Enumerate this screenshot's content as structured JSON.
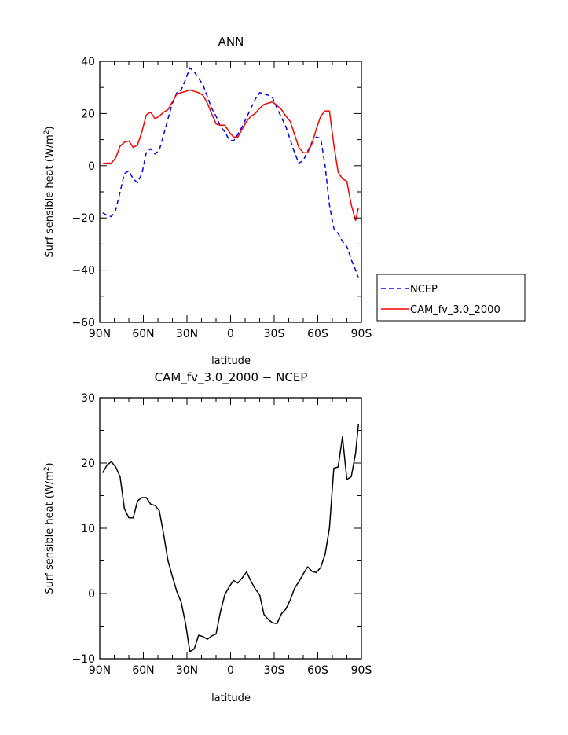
{
  "chart_data": [
    {
      "type": "line",
      "title": "ANN",
      "xlabel": "latitude",
      "ylabel_main": "Surf sensible heat (W/m",
      "ylabel_sup": "2",
      "ylabel_close": ")",
      "xlim": [
        90,
        -90
      ],
      "ylim": [
        -60,
        40
      ],
      "xticks": [
        {
          "value": 90,
          "label": "90N"
        },
        {
          "value": 60,
          "label": "60N"
        },
        {
          "value": 30,
          "label": "30N"
        },
        {
          "value": 0,
          "label": "0"
        },
        {
          "value": -30,
          "label": "30S"
        },
        {
          "value": -60,
          "label": "60S"
        },
        {
          "value": -90,
          "label": "90S"
        }
      ],
      "yticks": [
        {
          "value": 40,
          "label": "40"
        },
        {
          "value": 20,
          "label": "20"
        },
        {
          "value": 0,
          "label": "0"
        },
        {
          "value": -20,
          "label": "−20"
        },
        {
          "value": -40,
          "label": "−40"
        },
        {
          "value": -60,
          "label": "−60"
        }
      ],
      "legend_position": "right",
      "series": [
        {
          "name": "NCEP",
          "color": "#0000ff",
          "dashed": true,
          "x": [
            88,
            85,
            82,
            79,
            76,
            73,
            70,
            67,
            64,
            61,
            58,
            55,
            52,
            49,
            46,
            43,
            40,
            37,
            34,
            31,
            28,
            25,
            22,
            19,
            16,
            13,
            10,
            7,
            4,
            1,
            -2,
            -5,
            -8,
            -11,
            -14,
            -17,
            -20,
            -23,
            -26,
            -29,
            -32,
            -35,
            -38,
            -41,
            -44,
            -47,
            -50,
            -53,
            -56,
            -59,
            -62,
            -65,
            -68,
            -71,
            -74,
            -77,
            -80,
            -83,
            -86,
            -88
          ],
          "values": [
            -18,
            -19,
            -19.5,
            -17,
            -10,
            -3,
            -2,
            -5,
            -6.5,
            -3,
            5,
            6.5,
            4.5,
            6,
            12,
            18,
            24,
            28,
            29,
            33,
            37.5,
            36,
            33.5,
            31,
            26.5,
            22,
            19,
            15,
            13,
            10,
            9.5,
            12,
            15,
            18.5,
            22,
            25.5,
            28,
            27.5,
            27,
            26,
            22,
            18.5,
            15,
            10,
            5,
            1,
            2,
            5.5,
            9,
            11,
            10.5,
            0,
            -15,
            -24,
            -26,
            -29,
            -31,
            -36,
            -40,
            -43
          ]
        },
        {
          "name": "CAM_fv_3.0_2000",
          "color": "#ff0000",
          "dashed": false,
          "x": [
            88,
            85,
            82,
            79,
            76,
            73,
            70,
            67,
            64,
            61,
            58,
            55,
            52,
            49,
            46,
            43,
            40,
            37,
            34,
            31,
            28,
            25,
            22,
            19,
            16,
            13,
            10,
            7,
            4,
            1,
            -2,
            -5,
            -8,
            -11,
            -14,
            -17,
            -20,
            -23,
            -26,
            -29,
            -32,
            -35,
            -38,
            -41,
            -44,
            -47,
            -50,
            -53,
            -56,
            -59,
            -62,
            -65,
            -68,
            -71,
            -74,
            -77,
            -80,
            -83,
            -86,
            -88
          ],
          "values": [
            0.8,
            1,
            1,
            3,
            7.5,
            9,
            9.5,
            7,
            8,
            13,
            19.5,
            20.5,
            18,
            19,
            20.5,
            21.5,
            24.5,
            27.5,
            28,
            28.5,
            29,
            28.5,
            28,
            27,
            24,
            20,
            16,
            15.5,
            15.5,
            13,
            11,
            11,
            14,
            17,
            19,
            20,
            22,
            23.5,
            24,
            24.5,
            23,
            21.5,
            19,
            17,
            12,
            7,
            5,
            5,
            8.5,
            14,
            19,
            21,
            21,
            8,
            -2.5,
            -5,
            -6,
            -15,
            -21,
            -16
          ]
        }
      ]
    },
    {
      "type": "line",
      "title": "CAM_fv_3.0_2000 − NCEP",
      "xlabel": "latitude",
      "ylabel_main": "Surf sensible heat (W/m",
      "ylabel_sup": "2",
      "ylabel_close": ")",
      "xlim": [
        90,
        -90
      ],
      "ylim": [
        -10,
        30
      ],
      "xticks": [
        {
          "value": 90,
          "label": "90N"
        },
        {
          "value": 60,
          "label": "60N"
        },
        {
          "value": 30,
          "label": "30N"
        },
        {
          "value": 0,
          "label": "0"
        },
        {
          "value": -30,
          "label": "30S"
        },
        {
          "value": -60,
          "label": "60S"
        },
        {
          "value": -90,
          "label": "90S"
        }
      ],
      "yticks": [
        {
          "value": 30,
          "label": "30"
        },
        {
          "value": 20,
          "label": "20"
        },
        {
          "value": 10,
          "label": "10"
        },
        {
          "value": 0,
          "label": "0"
        },
        {
          "value": -10,
          "label": "−10"
        }
      ],
      "series": [
        {
          "name": "CAM_fv_3.0_2000 − NCEP",
          "color": "#000000",
          "dashed": false,
          "x": [
            88,
            85,
            82,
            79,
            76,
            73,
            70,
            67,
            64,
            61,
            58,
            55,
            52,
            49,
            46,
            43,
            40,
            37,
            34,
            31,
            28,
            25,
            22,
            19,
            16,
            13,
            10,
            7,
            4,
            1,
            -2,
            -5,
            -8,
            -11,
            -14,
            -17,
            -20,
            -23,
            -26,
            -29,
            -32,
            -35,
            -38,
            -41,
            -44,
            -47,
            -50,
            -53,
            -56,
            -59,
            -62,
            -65,
            -68,
            -71,
            -74,
            -77,
            -80,
            -83,
            -86,
            -88
          ],
          "values": [
            18.5,
            19.7,
            20.2,
            19.4,
            17.9,
            13,
            11.6,
            11.6,
            14.2,
            14.7,
            14.7,
            13.7,
            13.5,
            12.7,
            9,
            5,
            2.6,
            0.3,
            -1.3,
            -4.6,
            -8.9,
            -8.5,
            -6.4,
            -6.6,
            -7,
            -6.5,
            -6.2,
            -2.8,
            -0.2,
            1,
            2,
            1.6,
            2.4,
            3.3,
            1.9,
            0.7,
            -0.2,
            -3.2,
            -4,
            -4.5,
            -4.6,
            -3.1,
            -2.4,
            -1,
            0.8,
            1.8,
            3,
            4.1,
            3.4,
            3.2,
            4,
            6,
            10,
            19.2,
            19.4,
            24,
            17.5,
            17.9,
            21.5,
            26
          ]
        }
      ]
    }
  ]
}
